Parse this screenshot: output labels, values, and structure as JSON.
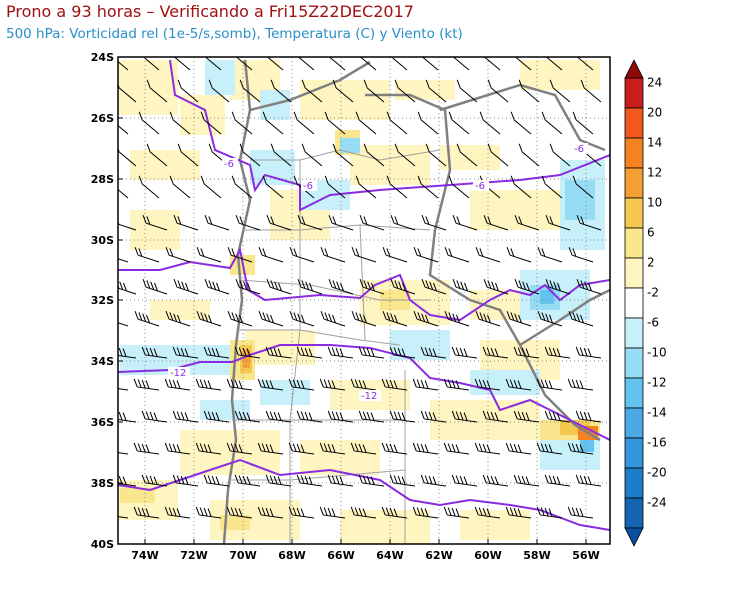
{
  "header": {
    "title": "Prono a 93 horas – Verificando a Fri15Z22DEC2017",
    "subtitle": "500 hPa: Vorticidad rel (1e-5/s,somb), Temperatura (C) y Viento (kt)"
  },
  "map": {
    "lat_labels": [
      "24S",
      "26S",
      "28S",
      "30S",
      "32S",
      "34S",
      "36S",
      "38S",
      "40S"
    ],
    "lon_labels": [
      "74W",
      "72W",
      "70W",
      "68W",
      "66W",
      "64W",
      "62W",
      "60W",
      "58W",
      "56W"
    ],
    "contour_labels": [
      "-6",
      "-6",
      "-6",
      "-6",
      "-12",
      "-12"
    ],
    "colors": {
      "temp_contour": "#8a2be2",
      "border": "#808080",
      "frame": "#000000"
    }
  },
  "colorbar": {
    "labels": [
      "24",
      "20",
      "14",
      "12",
      "10",
      "6",
      "2",
      "-2",
      "-6",
      "-10",
      "-12",
      "-14",
      "-16",
      "-20",
      "-24"
    ],
    "colors": [
      "#c81e1e",
      "#f0581e",
      "#f5821e",
      "#f5a032",
      "#f5c850",
      "#fae68c",
      "#fff5c0",
      "#ffffff",
      "#c8f0fa",
      "#96dcf5",
      "#64c3ee",
      "#4aaae6",
      "#3296dc",
      "#1e7dc8",
      "#1464b4"
    ]
  }
}
